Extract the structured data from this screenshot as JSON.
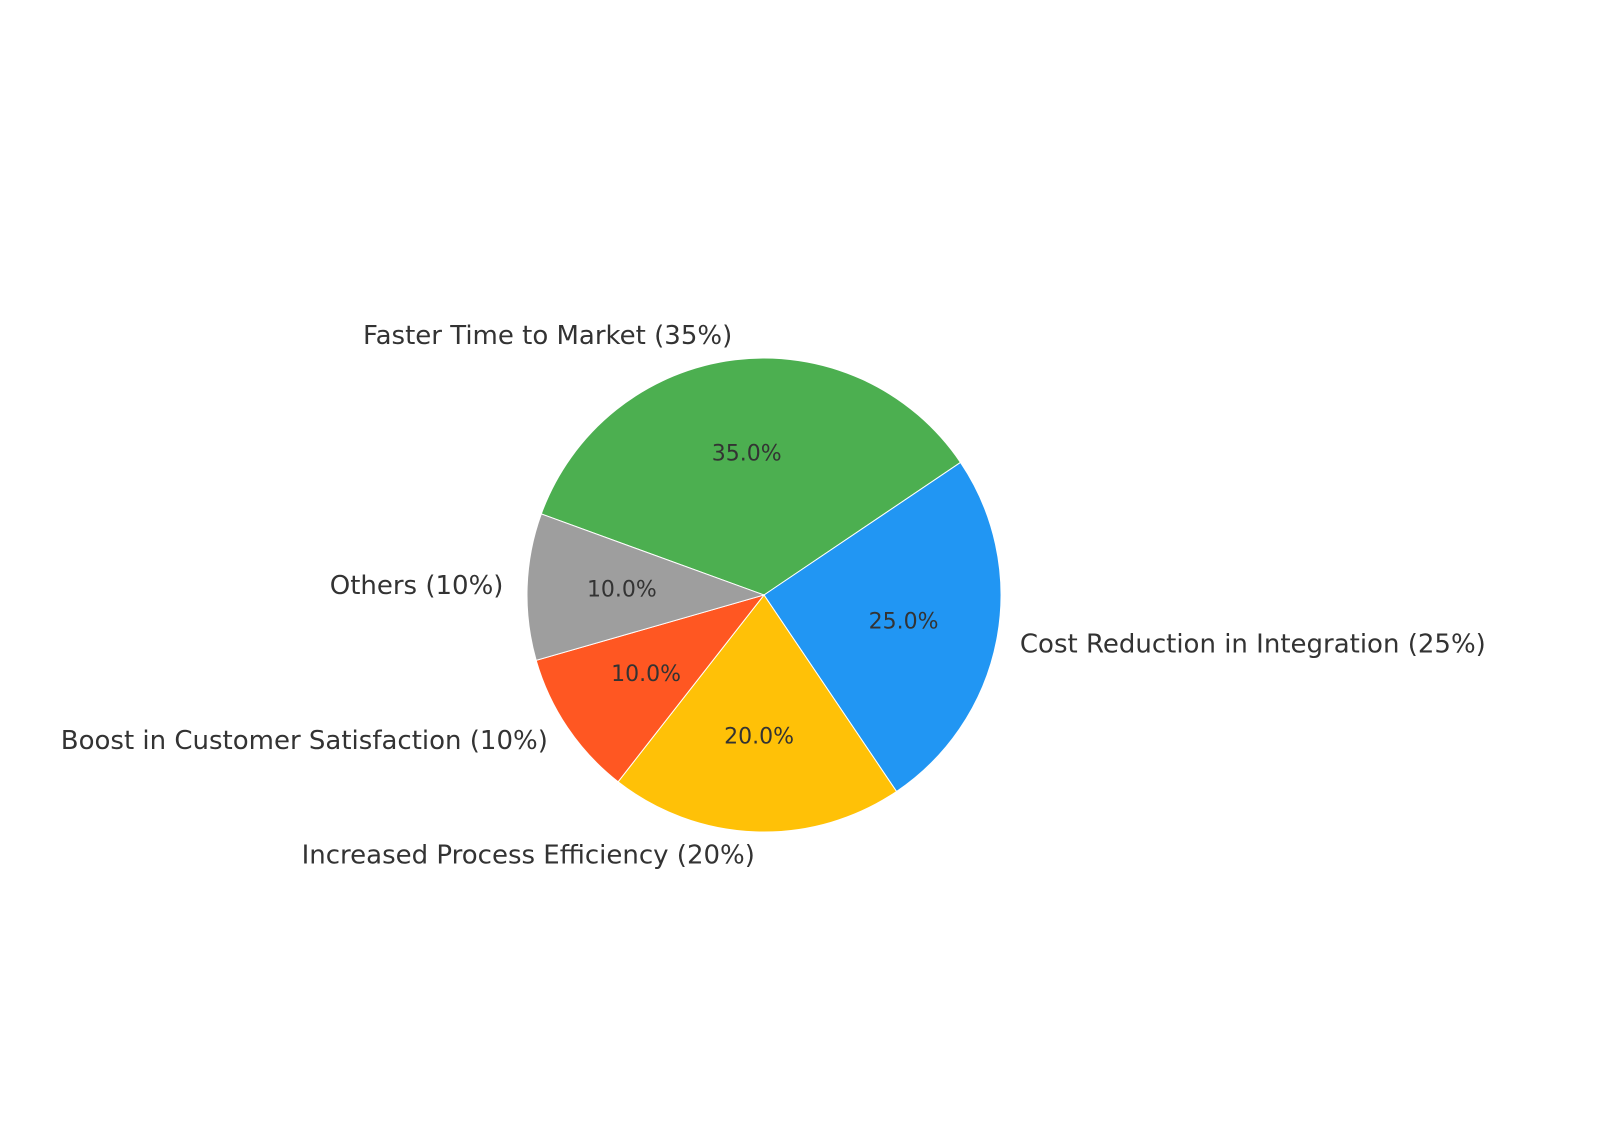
{
  "chart_data": {
    "type": "pie",
    "start_angle_deg": 160,
    "direction": "clockwise",
    "slices": [
      {
        "label": "Faster Time to Market (35%)",
        "value": 35,
        "pct_label": "35.0%",
        "color": "#4CAF50"
      },
      {
        "label": "Cost Reduction in Integration (25%)",
        "value": 25,
        "pct_label": "25.0%",
        "color": "#2196F3"
      },
      {
        "label": "Increased Process Efficiency (20%)",
        "value": 20,
        "pct_label": "20.0%",
        "color": "#FFC107"
      },
      {
        "label": "Boost in Customer Satisfaction (10%)",
        "value": 10,
        "pct_label": "10.0%",
        "color": "#FF5722"
      },
      {
        "label": "Others (10%)",
        "value": 10,
        "pct_label": "10.0%",
        "color": "#9E9E9E"
      }
    ]
  }
}
